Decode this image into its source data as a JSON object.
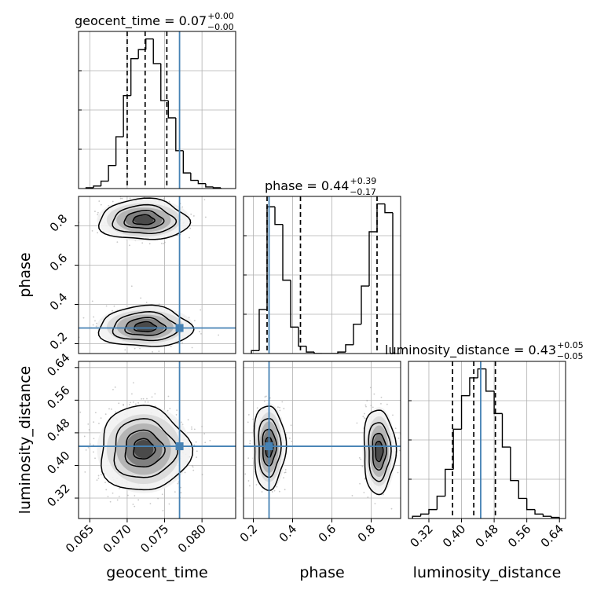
{
  "figure": {
    "parameters": [
      "geocent_time",
      "phase",
      "luminosity_distance"
    ],
    "axis_labels": [
      "geocent_time",
      "phase",
      "luminosity_distance"
    ],
    "titles": [
      {
        "base": "geocent_time = 0.07",
        "plus": "+0.00",
        "minus": "−0.00"
      },
      {
        "base": "phase = 0.44",
        "plus": "+0.39",
        "minus": "−0.17"
      },
      {
        "base": "luminosity_distance = 0.43",
        "plus": "+0.05",
        "minus": "−0.05"
      }
    ],
    "truth_color": "#4682b4",
    "ticks": {
      "geocent_time": [
        "0.065",
        "0.070",
        "0.075",
        "0.080"
      ],
      "phase": [
        "0.2",
        "0.4",
        "0.6",
        "0.8"
      ],
      "luminosity_distance": [
        "0.32",
        "0.40",
        "0.48",
        "0.56",
        "0.64"
      ]
    }
  },
  "chart_data": {
    "type": "corner",
    "parameters": [
      "geocent_time",
      "phase",
      "luminosity_distance"
    ],
    "ranges": {
      "geocent_time": [
        0.0635,
        0.0845
      ],
      "phase": [
        0.15,
        0.95
      ],
      "luminosity_distance": [
        0.27,
        0.655
      ]
    },
    "truths": {
      "geocent_time": 0.077,
      "phase": 0.28,
      "luminosity_distance": 0.447
    },
    "quantiles": {
      "geocent_time": [
        0.07,
        0.0724,
        0.0753
      ],
      "phase": [
        0.27,
        0.44,
        0.83
      ],
      "luminosity_distance": [
        0.378,
        0.43,
        0.483
      ]
    },
    "histograms": {
      "geocent_time": {
        "edges": [
          0.0645,
          0.0655,
          0.0665,
          0.0675,
          0.0685,
          0.0695,
          0.0705,
          0.0715,
          0.0725,
          0.0735,
          0.0745,
          0.0755,
          0.0765,
          0.0775,
          0.0785,
          0.0795,
          0.0805,
          0.0815,
          0.0825
        ],
        "counts": [
          1,
          3,
          9,
          28,
          63,
          113,
          158,
          169,
          182,
          152,
          107,
          86,
          46,
          19,
          10,
          6,
          2,
          1
        ]
      },
      "phase": {
        "edges": [
          0.19,
          0.23,
          0.27,
          0.31,
          0.35,
          0.39,
          0.43,
          0.47,
          0.51,
          0.55,
          0.59,
          0.63,
          0.67,
          0.71,
          0.75,
          0.79,
          0.83,
          0.87,
          0.91
        ],
        "counts": [
          2,
          30,
          100,
          88,
          50,
          18,
          5,
          1,
          0,
          0,
          0,
          1,
          6,
          20,
          46,
          83,
          102,
          96
        ]
      },
      "luminosity_distance": {
        "edges": [
          0.28,
          0.3,
          0.32,
          0.34,
          0.36,
          0.38,
          0.4,
          0.42,
          0.44,
          0.46,
          0.48,
          0.5,
          0.52,
          0.54,
          0.56,
          0.58,
          0.6,
          0.62,
          0.64
        ],
        "counts": [
          1,
          2,
          4,
          10,
          22,
          40,
          55,
          63,
          67,
          57,
          47,
          32,
          17,
          9,
          4,
          2,
          1,
          0.5
        ]
      }
    },
    "joint": [
      {
        "x": "geocent_time",
        "y": "phase",
        "modes": [
          {
            "center": [
              0.0722,
              0.83
            ],
            "spread": [
              0.0026,
              0.045
            ],
            "weight": 0.5
          },
          {
            "center": [
              0.0724,
              0.285
            ],
            "spread": [
              0.0027,
              0.045
            ],
            "weight": 0.5
          }
        ]
      },
      {
        "x": "geocent_time",
        "y": "luminosity_distance",
        "modes": [
          {
            "center": [
              0.0722,
              0.44
            ],
            "spread": [
              0.0026,
              0.045
            ],
            "weight": 1
          }
        ]
      },
      {
        "x": "phase",
        "y": "luminosity_distance",
        "modes": [
          {
            "center": [
              0.28,
              0.445
            ],
            "spread": [
              0.035,
              0.045
            ],
            "weight": 0.5
          },
          {
            "center": [
              0.84,
              0.435
            ],
            "spread": [
              0.035,
              0.045
            ],
            "weight": 0.5
          }
        ]
      }
    ]
  }
}
